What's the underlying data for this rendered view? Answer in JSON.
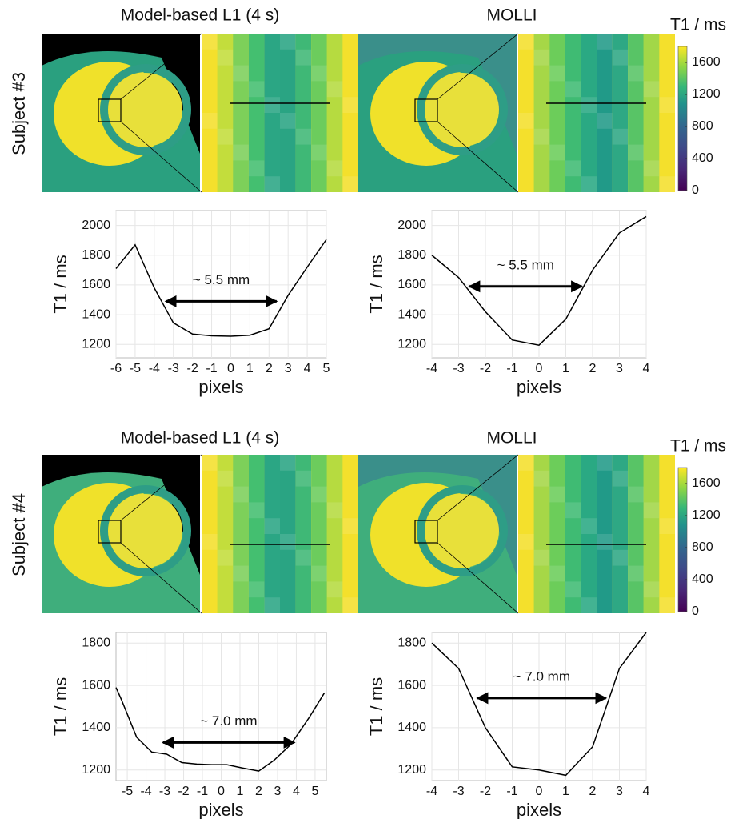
{
  "rows": [
    {
      "subject": "Subject #3",
      "titles": [
        "Model-based L1 (4 s)",
        "MOLLI"
      ]
    },
    {
      "subject": "Subject #4",
      "titles": [
        "Model-based L1 (4 s)",
        "MOLLI"
      ]
    }
  ],
  "colorbar": {
    "label": "T1 / ms",
    "ticks": [
      0,
      400,
      800,
      1200,
      1600
    ],
    "lim": [
      0,
      1800
    ]
  },
  "chart_data": [
    {
      "type": "line",
      "xlabel": "pixels",
      "ylabel": "T1 / ms",
      "grid": true,
      "color": "#000000",
      "x": [
        -6,
        -5,
        -4,
        -3,
        -2,
        -1,
        0,
        1,
        2,
        3,
        4,
        5
      ],
      "values": [
        1710,
        1870,
        1580,
        1345,
        1270,
        1258,
        1255,
        1262,
        1305,
        1530,
        1720,
        1905
      ],
      "xlim": [
        -6,
        5
      ],
      "ylim": [
        1110,
        2100
      ],
      "xticks": [
        -6,
        -5,
        -4,
        -3,
        -2,
        -1,
        0,
        1,
        2,
        3,
        4,
        5
      ],
      "yticks": [
        1200,
        1400,
        1600,
        1800,
        2000
      ],
      "annotation": {
        "text": "~ 5.5 mm",
        "x": [
          -3.4,
          2.4
        ],
        "y": 1490
      }
    },
    {
      "type": "line",
      "xlabel": "pixels",
      "ylabel": "T1 / ms",
      "grid": true,
      "color": "#000000",
      "x": [
        -4,
        -3,
        -2,
        -1,
        0,
        1,
        2,
        3,
        4
      ],
      "values": [
        1800,
        1650,
        1420,
        1230,
        1195,
        1370,
        1700,
        1950,
        2060
      ],
      "xlim": [
        -4,
        4
      ],
      "ylim": [
        1110,
        2100
      ],
      "xticks": [
        -4,
        -3,
        -2,
        -1,
        0,
        1,
        2,
        3,
        4
      ],
      "yticks": [
        1200,
        1400,
        1600,
        1800,
        2000
      ],
      "annotation": {
        "text": "~ 5.5 mm",
        "x": [
          -2.6,
          1.6
        ],
        "y": 1590
      }
    },
    {
      "type": "line",
      "xlabel": "pixels",
      "ylabel": "T1 / ms",
      "grid": true,
      "color": "#000000",
      "x": [
        -5.6,
        -5.3,
        -4.5,
        -3.7,
        -2.9,
        -2.1,
        -1.3,
        -0.5,
        0.3,
        1.1,
        2.0,
        2.8,
        3.7,
        4.7,
        5.5
      ],
      "values": [
        1590,
        1530,
        1355,
        1285,
        1275,
        1235,
        1228,
        1225,
        1225,
        1210,
        1195,
        1245,
        1320,
        1450,
        1565
      ],
      "xlim": [
        -5.6,
        5.6
      ],
      "ylim": [
        1150,
        1850
      ],
      "xticks": [
        -5,
        -4,
        -3,
        -2,
        -1,
        0,
        1,
        2,
        3,
        4,
        5
      ],
      "yticks": [
        1200,
        1400,
        1600,
        1800
      ],
      "annotation": {
        "text": "~ 7.0 mm",
        "x": [
          -3.1,
          3.9
        ],
        "y": 1330
      }
    },
    {
      "type": "line",
      "xlabel": "pixels",
      "ylabel": "T1 / ms",
      "grid": true,
      "color": "#000000",
      "x": [
        -4,
        -3,
        -2,
        -1,
        0,
        1,
        2,
        3,
        4
      ],
      "values": [
        1800,
        1680,
        1400,
        1215,
        1200,
        1175,
        1310,
        1680,
        1850
      ],
      "xlim": [
        -4,
        4
      ],
      "ylim": [
        1150,
        1850
      ],
      "xticks": [
        -4,
        -3,
        -2,
        -1,
        0,
        1,
        2,
        3,
        4
      ],
      "yticks": [
        1200,
        1400,
        1600,
        1800
      ],
      "annotation": {
        "text": "~ 7.0 mm",
        "x": [
          -2.3,
          2.5
        ],
        "y": 1540
      }
    }
  ]
}
